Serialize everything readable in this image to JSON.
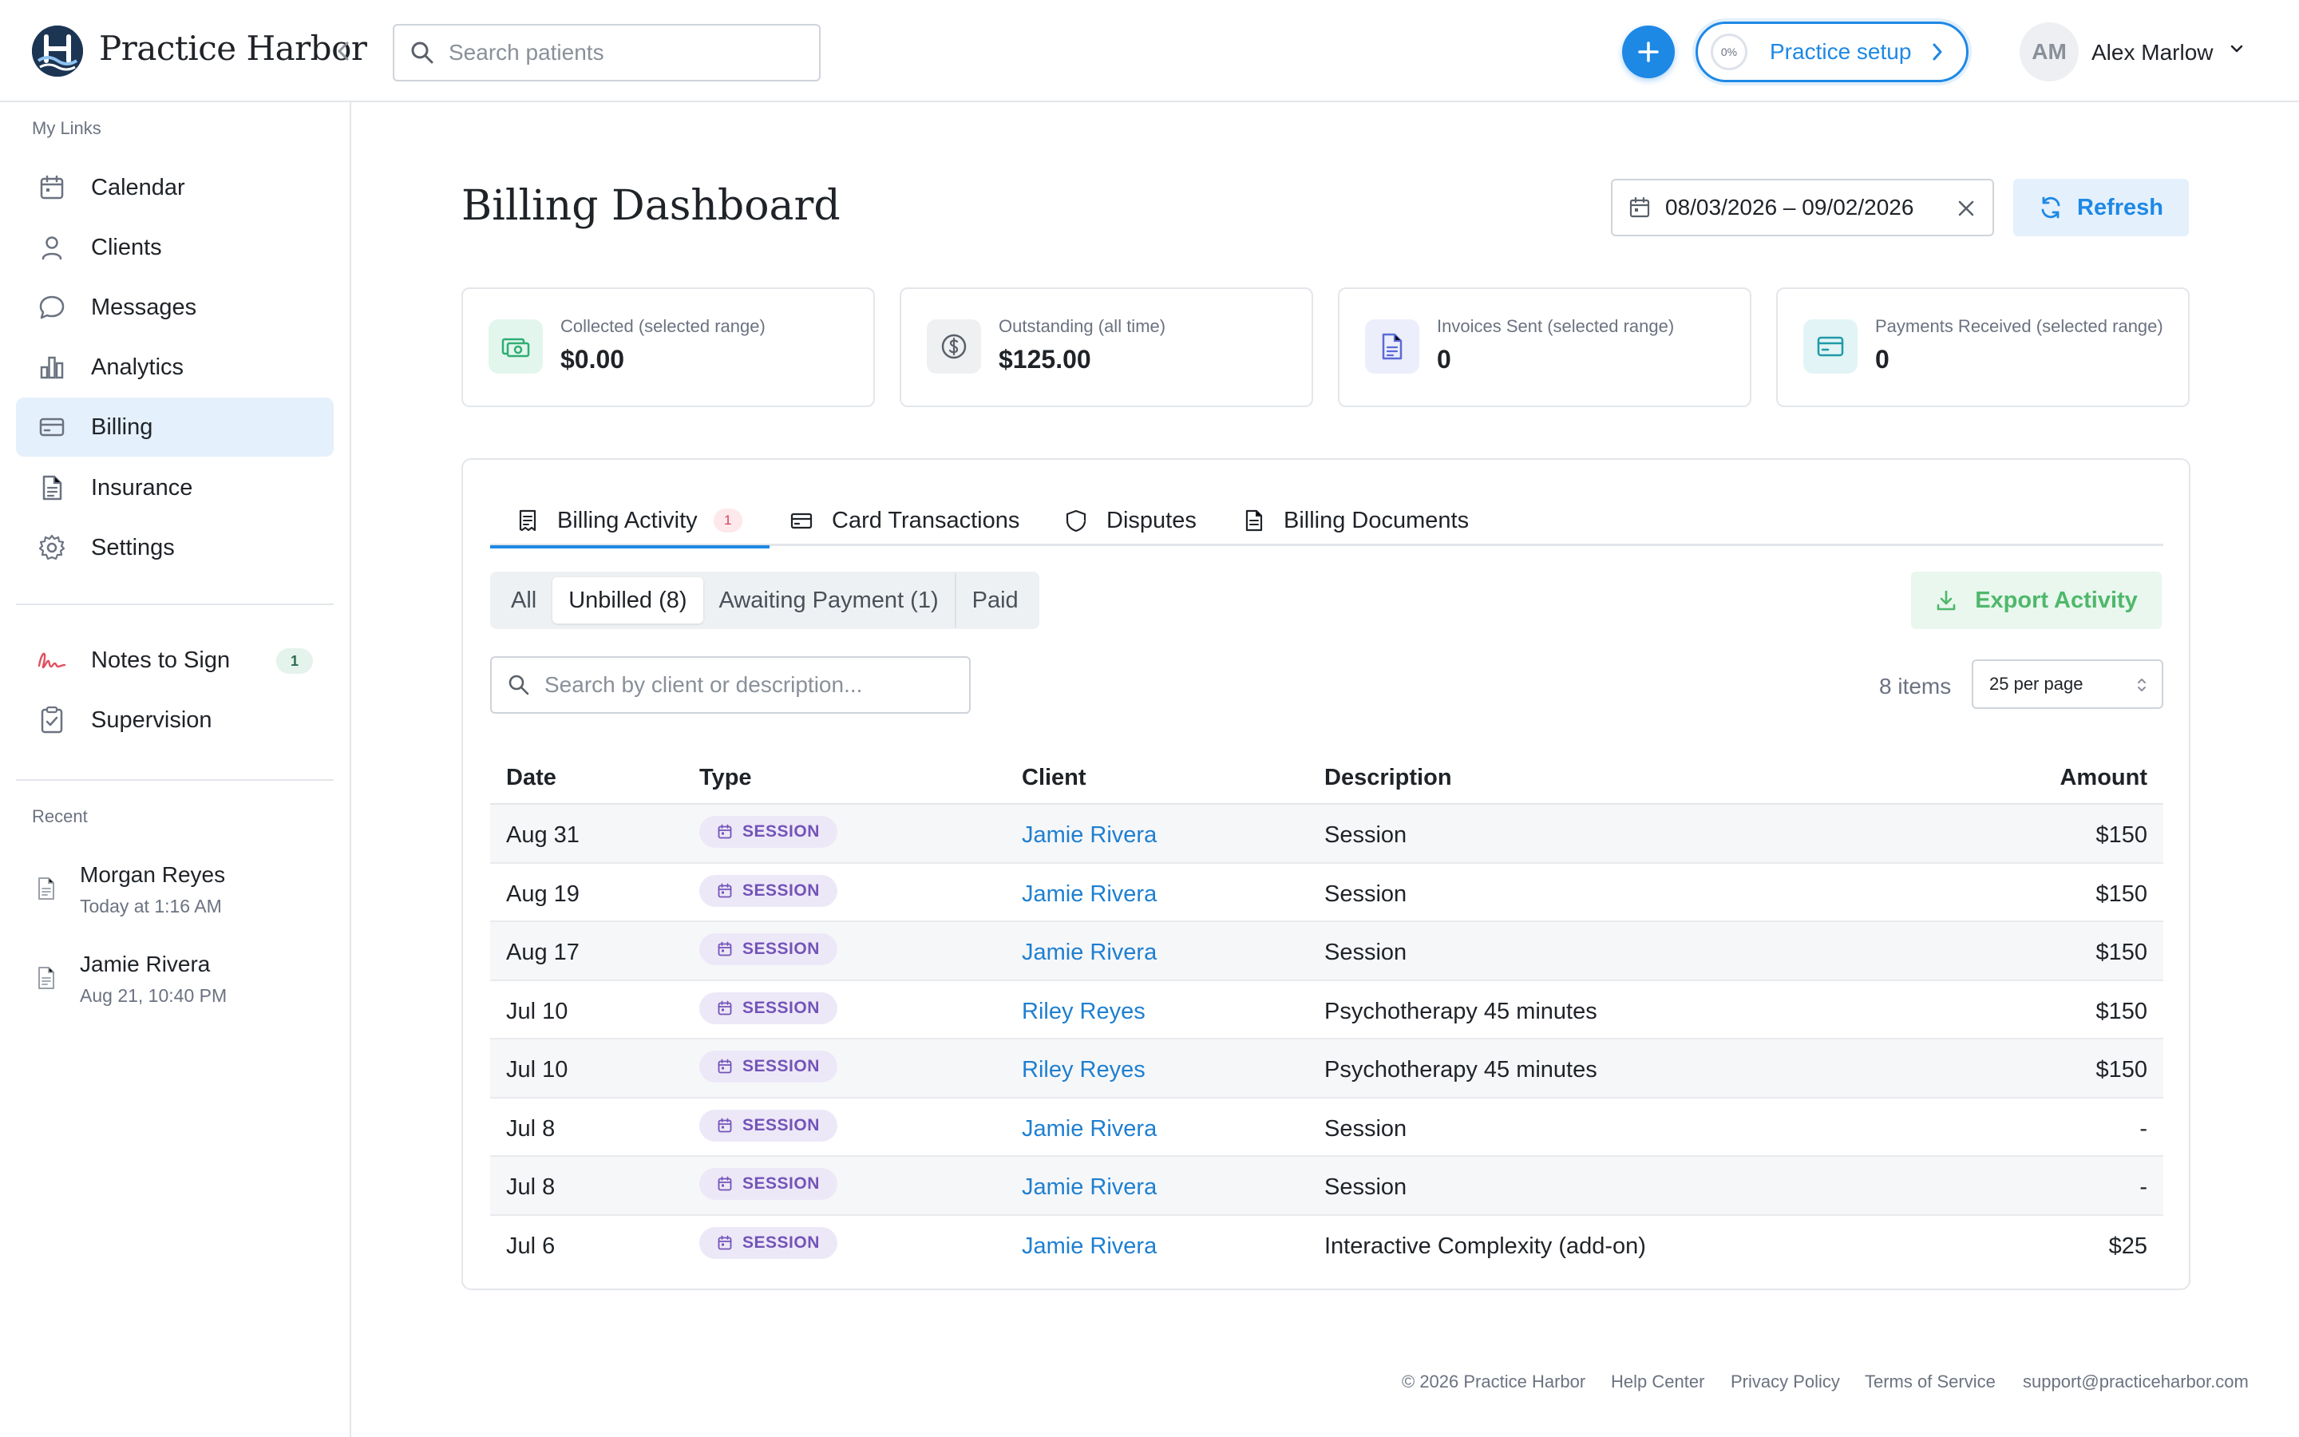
{
  "app": {
    "brand": "Practice Harbor"
  },
  "topbar": {
    "search_placeholder": "Search patients",
    "setup_label": "Practice setup",
    "setup_progress": "0%",
    "avatar_initials": "AM",
    "user_name": "Alex Marlow"
  },
  "sidebar": {
    "my_links_label": "My Links",
    "items": [
      {
        "label": "Calendar",
        "icon": "calendar-icon"
      },
      {
        "label": "Clients",
        "icon": "person-icon"
      },
      {
        "label": "Messages",
        "icon": "chat-bubble-icon"
      },
      {
        "label": "Analytics",
        "icon": "bar-chart-icon"
      },
      {
        "label": "Billing",
        "icon": "credit-card-icon",
        "active": true
      },
      {
        "label": "Insurance",
        "icon": "document-icon"
      },
      {
        "label": "Settings",
        "icon": "gear-icon"
      }
    ],
    "notes_to_sign": {
      "label": "Notes to Sign",
      "badge": "1",
      "icon": "signature-icon"
    },
    "supervision": {
      "label": "Supervision",
      "icon": "clipboard-check-icon"
    },
    "recent_label": "Recent",
    "recent": [
      {
        "name": "Morgan Reyes",
        "time": "Today at 1:16 AM"
      },
      {
        "name": "Jamie Rivera",
        "time": "Aug 21, 10:40 PM"
      }
    ]
  },
  "main": {
    "title": "Billing Dashboard",
    "date_range": "08/03/2026 – 09/02/2026",
    "refresh_label": "Refresh",
    "stats": [
      {
        "label": "Collected (selected range)",
        "value": "$0.00",
        "icon": "cash-icon",
        "color": "#2fae74",
        "bg": "#e3f6ed"
      },
      {
        "label": "Outstanding (all time)",
        "value": "$125.00",
        "icon": "dollar-circle-icon",
        "color": "#5a6069",
        "bg": "#eef0f2"
      },
      {
        "label": "Invoices Sent (selected range)",
        "value": "0",
        "icon": "invoice-icon",
        "color": "#5b6ad6",
        "bg": "#eceefb"
      },
      {
        "label": "Payments Received (selected range)",
        "value": "0",
        "icon": "card-icon",
        "color": "#1f9aa8",
        "bg": "#e2f4f6"
      }
    ],
    "tabs": [
      {
        "label": "Billing Activity",
        "badge": "1"
      },
      {
        "label": "Card Transactions"
      },
      {
        "label": "Disputes"
      },
      {
        "label": "Billing Documents"
      }
    ],
    "filters": [
      "All",
      "Unbilled (8)",
      "Awaiting Payment (1)",
      "Paid"
    ],
    "selected_filter": "Unbilled (8)",
    "export_label": "Export Activity",
    "table_search_placeholder": "Search by client or description...",
    "items_count": "8 items",
    "per_page": "25 per page",
    "columns": [
      "Date",
      "Type",
      "Client",
      "Description",
      "Amount"
    ],
    "rows": [
      {
        "date": "Aug 31",
        "type": "SESSION",
        "client": "Jamie Rivera",
        "description": "Session",
        "amount": "$150"
      },
      {
        "date": "Aug 19",
        "type": "SESSION",
        "client": "Jamie Rivera",
        "description": "Session",
        "amount": "$150"
      },
      {
        "date": "Aug 17",
        "type": "SESSION",
        "client": "Jamie Rivera",
        "description": "Session",
        "amount": "$150"
      },
      {
        "date": "Jul 10",
        "type": "SESSION",
        "client": "Riley Reyes",
        "description": "Psychotherapy 45 minutes",
        "amount": "$150"
      },
      {
        "date": "Jul 10",
        "type": "SESSION",
        "client": "Riley Reyes",
        "description": "Psychotherapy 45 minutes",
        "amount": "$150"
      },
      {
        "date": "Jul 8",
        "type": "SESSION",
        "client": "Jamie Rivera",
        "description": "Session",
        "amount": "-"
      },
      {
        "date": "Jul 8",
        "type": "SESSION",
        "client": "Jamie Rivera",
        "description": "Session",
        "amount": "-"
      },
      {
        "date": "Jul 6",
        "type": "SESSION",
        "client": "Jamie Rivera",
        "description": "Interactive Complexity (add-on)",
        "amount": "$25"
      }
    ]
  },
  "footer": {
    "copyright": "© 2026 Practice Harbor",
    "help": "Help Center",
    "privacy": "Privacy Policy",
    "terms": "Terms of Service",
    "email": "support@practiceharbor.com"
  },
  "colors": {
    "accent": "#1e88e5",
    "brand_dark": "#1c3553",
    "session_pill": "#7354b8",
    "export_green": "#4fb86b"
  }
}
